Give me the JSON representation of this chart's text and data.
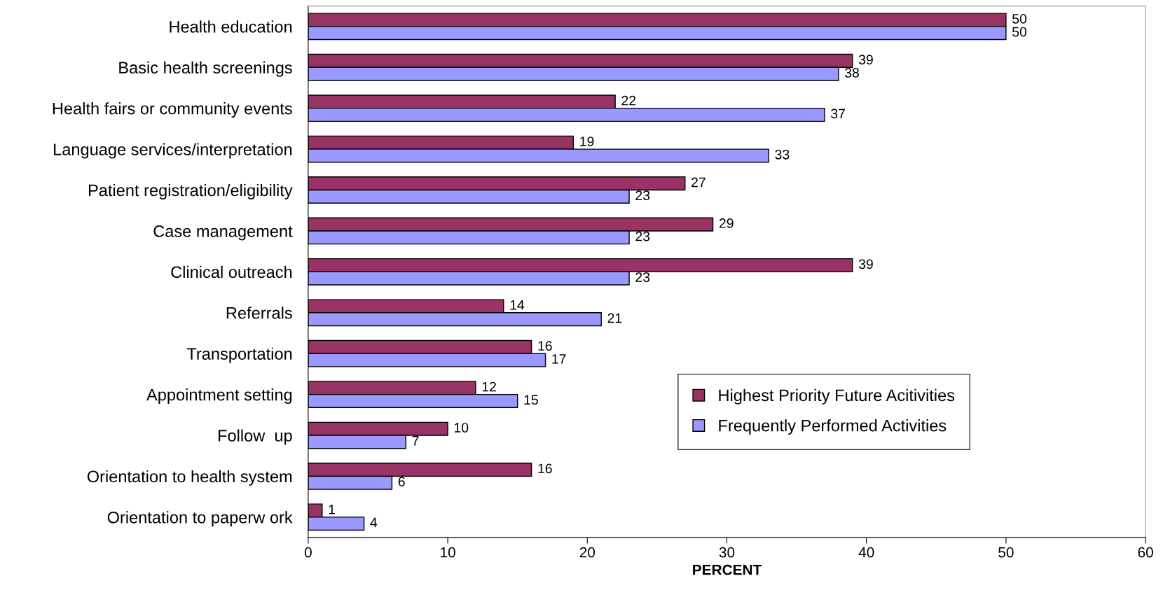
{
  "chart_data": {
    "type": "bar",
    "orientation": "horizontal",
    "xlabel": "PERCENT",
    "categories": [
      "Health education",
      "Basic health screenings",
      "Health fairs or community events",
      "Language services/interpretation",
      "Patient registration/eligibility",
      "Case management",
      "Clinical outreach",
      "Referrals",
      "Transportation",
      "Appointment setting",
      "Follow  up",
      "Orientation to health system",
      "Orientation to paperw ork"
    ],
    "series": [
      {
        "name": "Highest Priority Future Acitivities",
        "color": "#993366",
        "values": [
          50,
          39,
          22,
          19,
          27,
          29,
          39,
          14,
          16,
          12,
          10,
          16,
          1
        ]
      },
      {
        "name": "Frequently Performed Activities",
        "color": "#9999ff",
        "values": [
          50,
          38,
          37,
          33,
          23,
          23,
          23,
          21,
          17,
          15,
          7,
          6,
          4
        ]
      }
    ],
    "xlim": [
      0,
      60
    ],
    "xticks": [
      0,
      10,
      20,
      30,
      40,
      50,
      60
    ],
    "data_labels": true,
    "grid": false,
    "legend": "bottom right"
  }
}
